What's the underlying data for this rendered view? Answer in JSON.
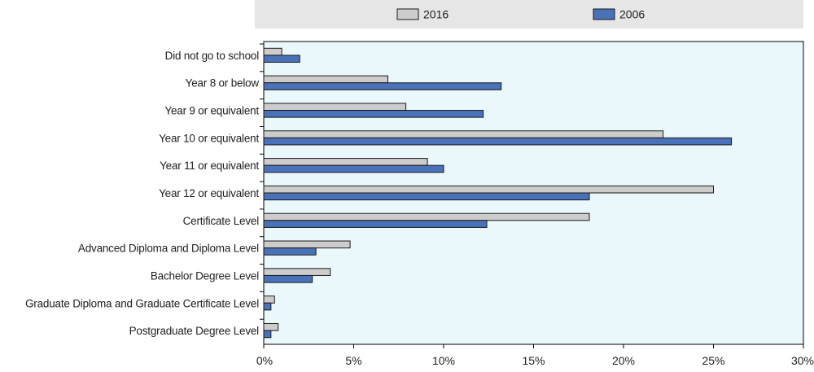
{
  "chart_data": {
    "type": "bar",
    "orientation": "horizontal",
    "title": "",
    "xlabel": "",
    "ylabel": "",
    "xlim": [
      0,
      30
    ],
    "x_ticks": [
      "0%",
      "5%",
      "10%",
      "15%",
      "20%",
      "25%",
      "30%"
    ],
    "x_tick_values": [
      0,
      5,
      10,
      15,
      20,
      25,
      30
    ],
    "grid": false,
    "legend_position": "top",
    "categories": [
      "Did not go to school",
      "Year 8 or below",
      "Year 9 or equivalent",
      "Year 10 or equivalent",
      "Year 11 or equivalent",
      "Year 12 or equivalent",
      "Certificate Level",
      "Advanced Diploma and Diploma Level",
      "Bachelor Degree Level",
      "Graduate Diploma and Graduate Certificate Level",
      "Postgraduate Degree Level"
    ],
    "series": [
      {
        "name": "2016",
        "color": "#cccccc",
        "values": [
          1.0,
          6.9,
          7.9,
          22.2,
          9.1,
          25.0,
          18.1,
          4.8,
          3.7,
          0.6,
          0.8
        ]
      },
      {
        "name": "2006",
        "color": "#4a72b8",
        "values": [
          2.0,
          13.2,
          12.2,
          26.0,
          10.0,
          18.1,
          12.4,
          2.9,
          2.7,
          0.4,
          0.4
        ]
      }
    ]
  },
  "colors": {
    "plot_background": "#eaf8fb",
    "legend_background": "#e6e6e6",
    "bar_outline": "#1a1a1a",
    "axis": "#000000"
  }
}
